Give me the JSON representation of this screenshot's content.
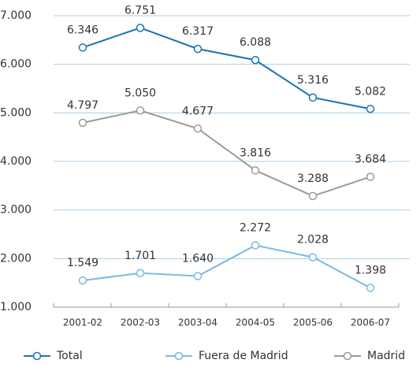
{
  "chart_data": {
    "type": "line",
    "categories": [
      "2001-02",
      "2002-03",
      "2003-04",
      "2004-05",
      "2005-06",
      "2006-07"
    ],
    "series": [
      {
        "name": "Total",
        "color": "#1a74b4",
        "values": [
          6346,
          6751,
          6317,
          6088,
          5316,
          5082
        ],
        "value_labels": [
          "6.346",
          "6.751",
          "6.317",
          "6.088",
          "5.316",
          "5.082"
        ]
      },
      {
        "name": "Fuera de Madrid",
        "color": "#7cb9e1",
        "values": [
          1549,
          1701,
          1640,
          2272,
          2028,
          1398
        ],
        "value_labels": [
          "1.549",
          "1.701",
          "1.640",
          "2.272",
          "2.028",
          "1.398"
        ]
      },
      {
        "name": "Madrid",
        "color": "#9a9a9a",
        "values": [
          4797,
          5050,
          4677,
          3816,
          3288,
          3684
        ],
        "value_labels": [
          "4.797",
          "5.050",
          "4.677",
          "3.816",
          "3.288",
          "3.684"
        ]
      }
    ],
    "ylim": [
      1000,
      7000
    ],
    "yticks": [
      {
        "value": 1000,
        "label": "1.000"
      },
      {
        "value": 2000,
        "label": "2.000"
      },
      {
        "value": 3000,
        "label": "3.000"
      },
      {
        "value": 4000,
        "label": "4.000"
      },
      {
        "value": 5000,
        "label": "5.000"
      },
      {
        "value": 6000,
        "label": "6.000"
      },
      {
        "value": 7000,
        "label": "7.000"
      }
    ],
    "grid": true,
    "legend": "bottom"
  }
}
